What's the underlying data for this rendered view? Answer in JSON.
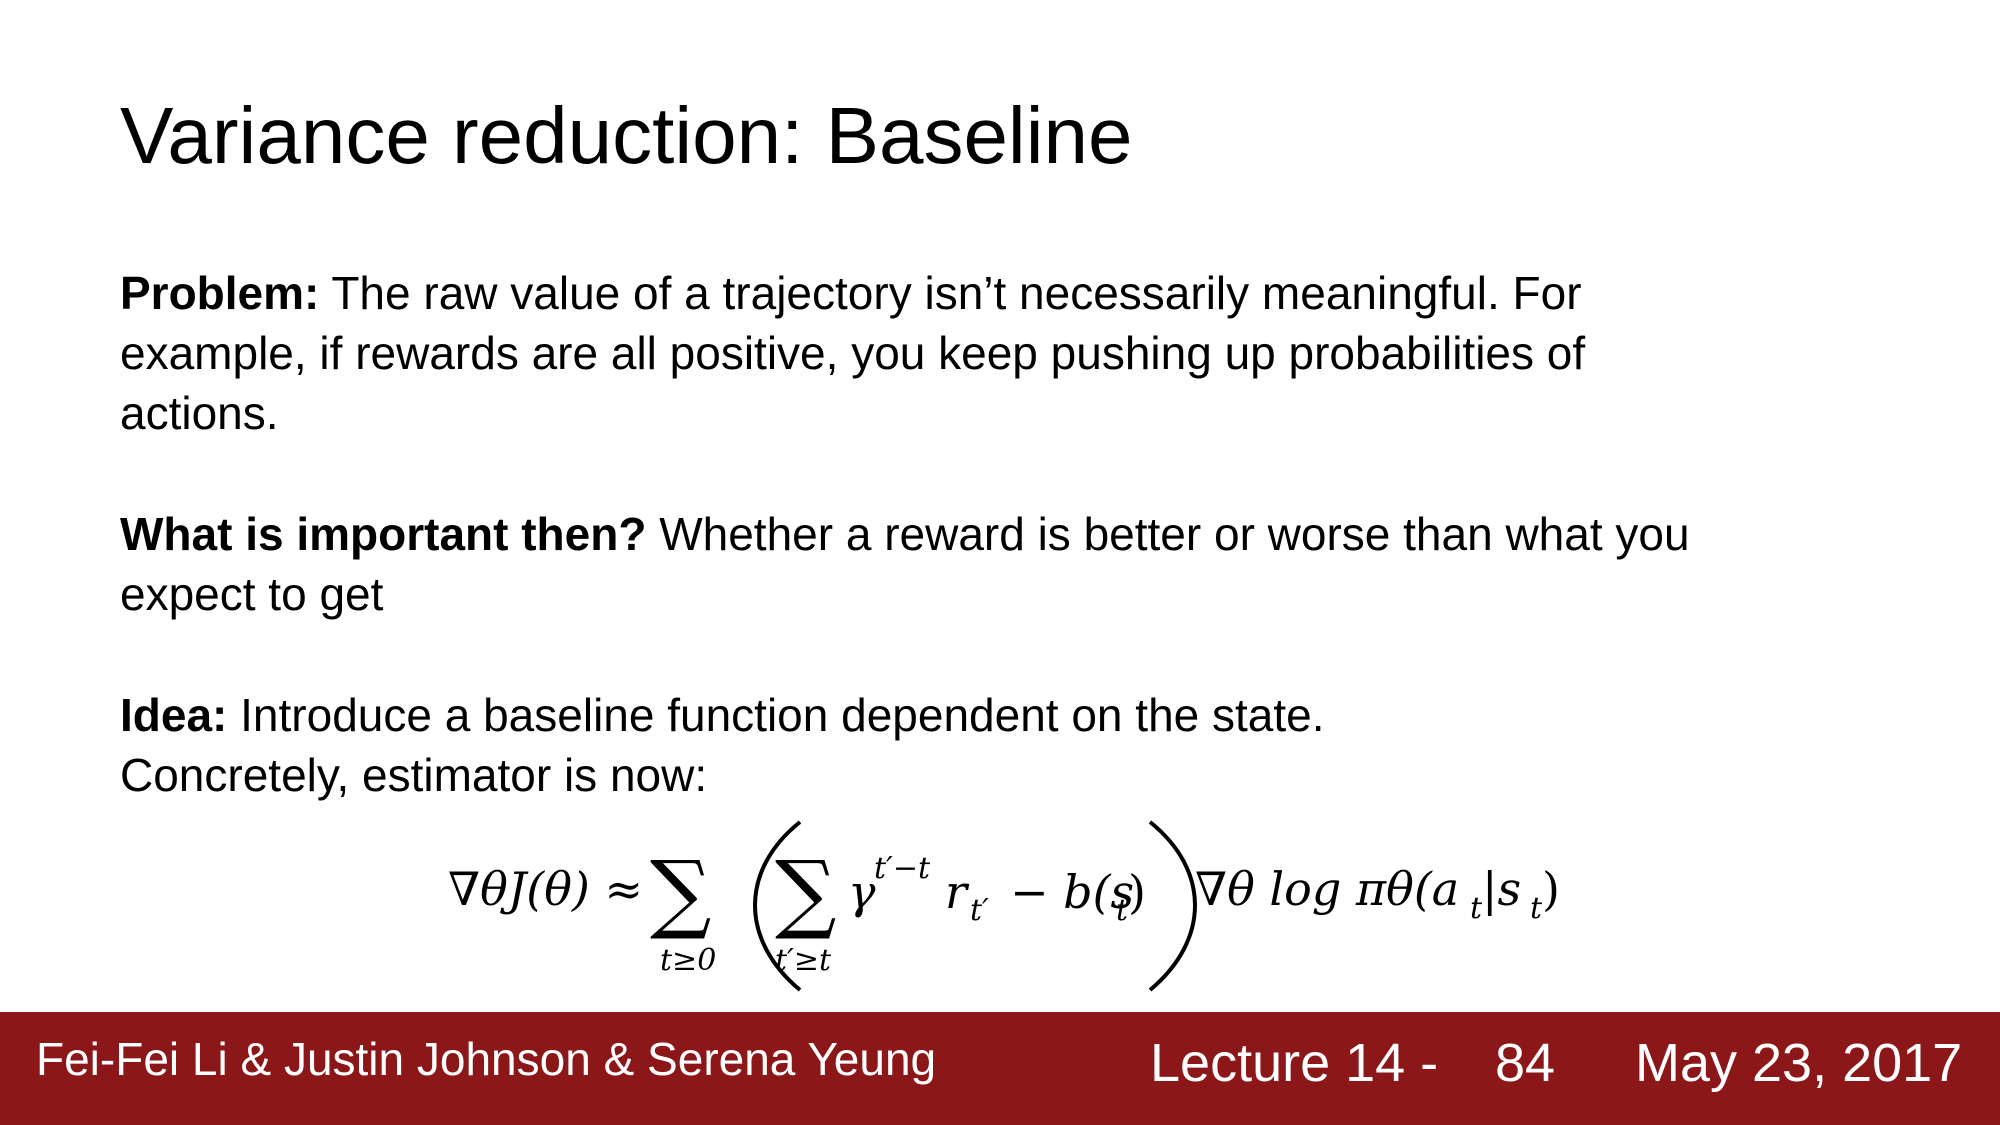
{
  "slide": {
    "title": "Variance reduction: Baseline",
    "paragraphs": [
      {
        "lead": "Problem:",
        "lines": [
          "The raw value of a trajectory isn’t necessarily meaningful. For",
          "example, if rewards are all positive, you keep pushing up probabilities of",
          "actions."
        ]
      },
      {
        "lead": "What is important then?",
        "lines": [
          "Whether a reward is better or worse than what you",
          "expect to get"
        ]
      },
      {
        "lead": "Idea:",
        "lines": [
          "Introduce a baseline function dependent on the state.",
          "Concretely, estimator is now:"
        ]
      }
    ],
    "formula": {
      "lhs": "∇θJ(θ) ≈",
      "outer_sum_sub": "t≥0",
      "inner_sum_sub": "t′≥t",
      "gamma_term": "γ",
      "gamma_exp": "t′−t",
      "reward": "r",
      "reward_sub": "t′",
      "minus_baseline": "− b(s",
      "baseline_sub": "t",
      "baseline_close": ")",
      "grad_log": "∇θ log πθ(a",
      "a_sub": "t",
      "bar_s": "|s",
      "s_sub": "t",
      "close": ")"
    }
  },
  "footer": {
    "authors": "Fei-Fei Li & Justin Johnson & Serena Yeung",
    "lecture": "Lecture 14 -",
    "page": "84",
    "date": "May 23, 2017"
  }
}
